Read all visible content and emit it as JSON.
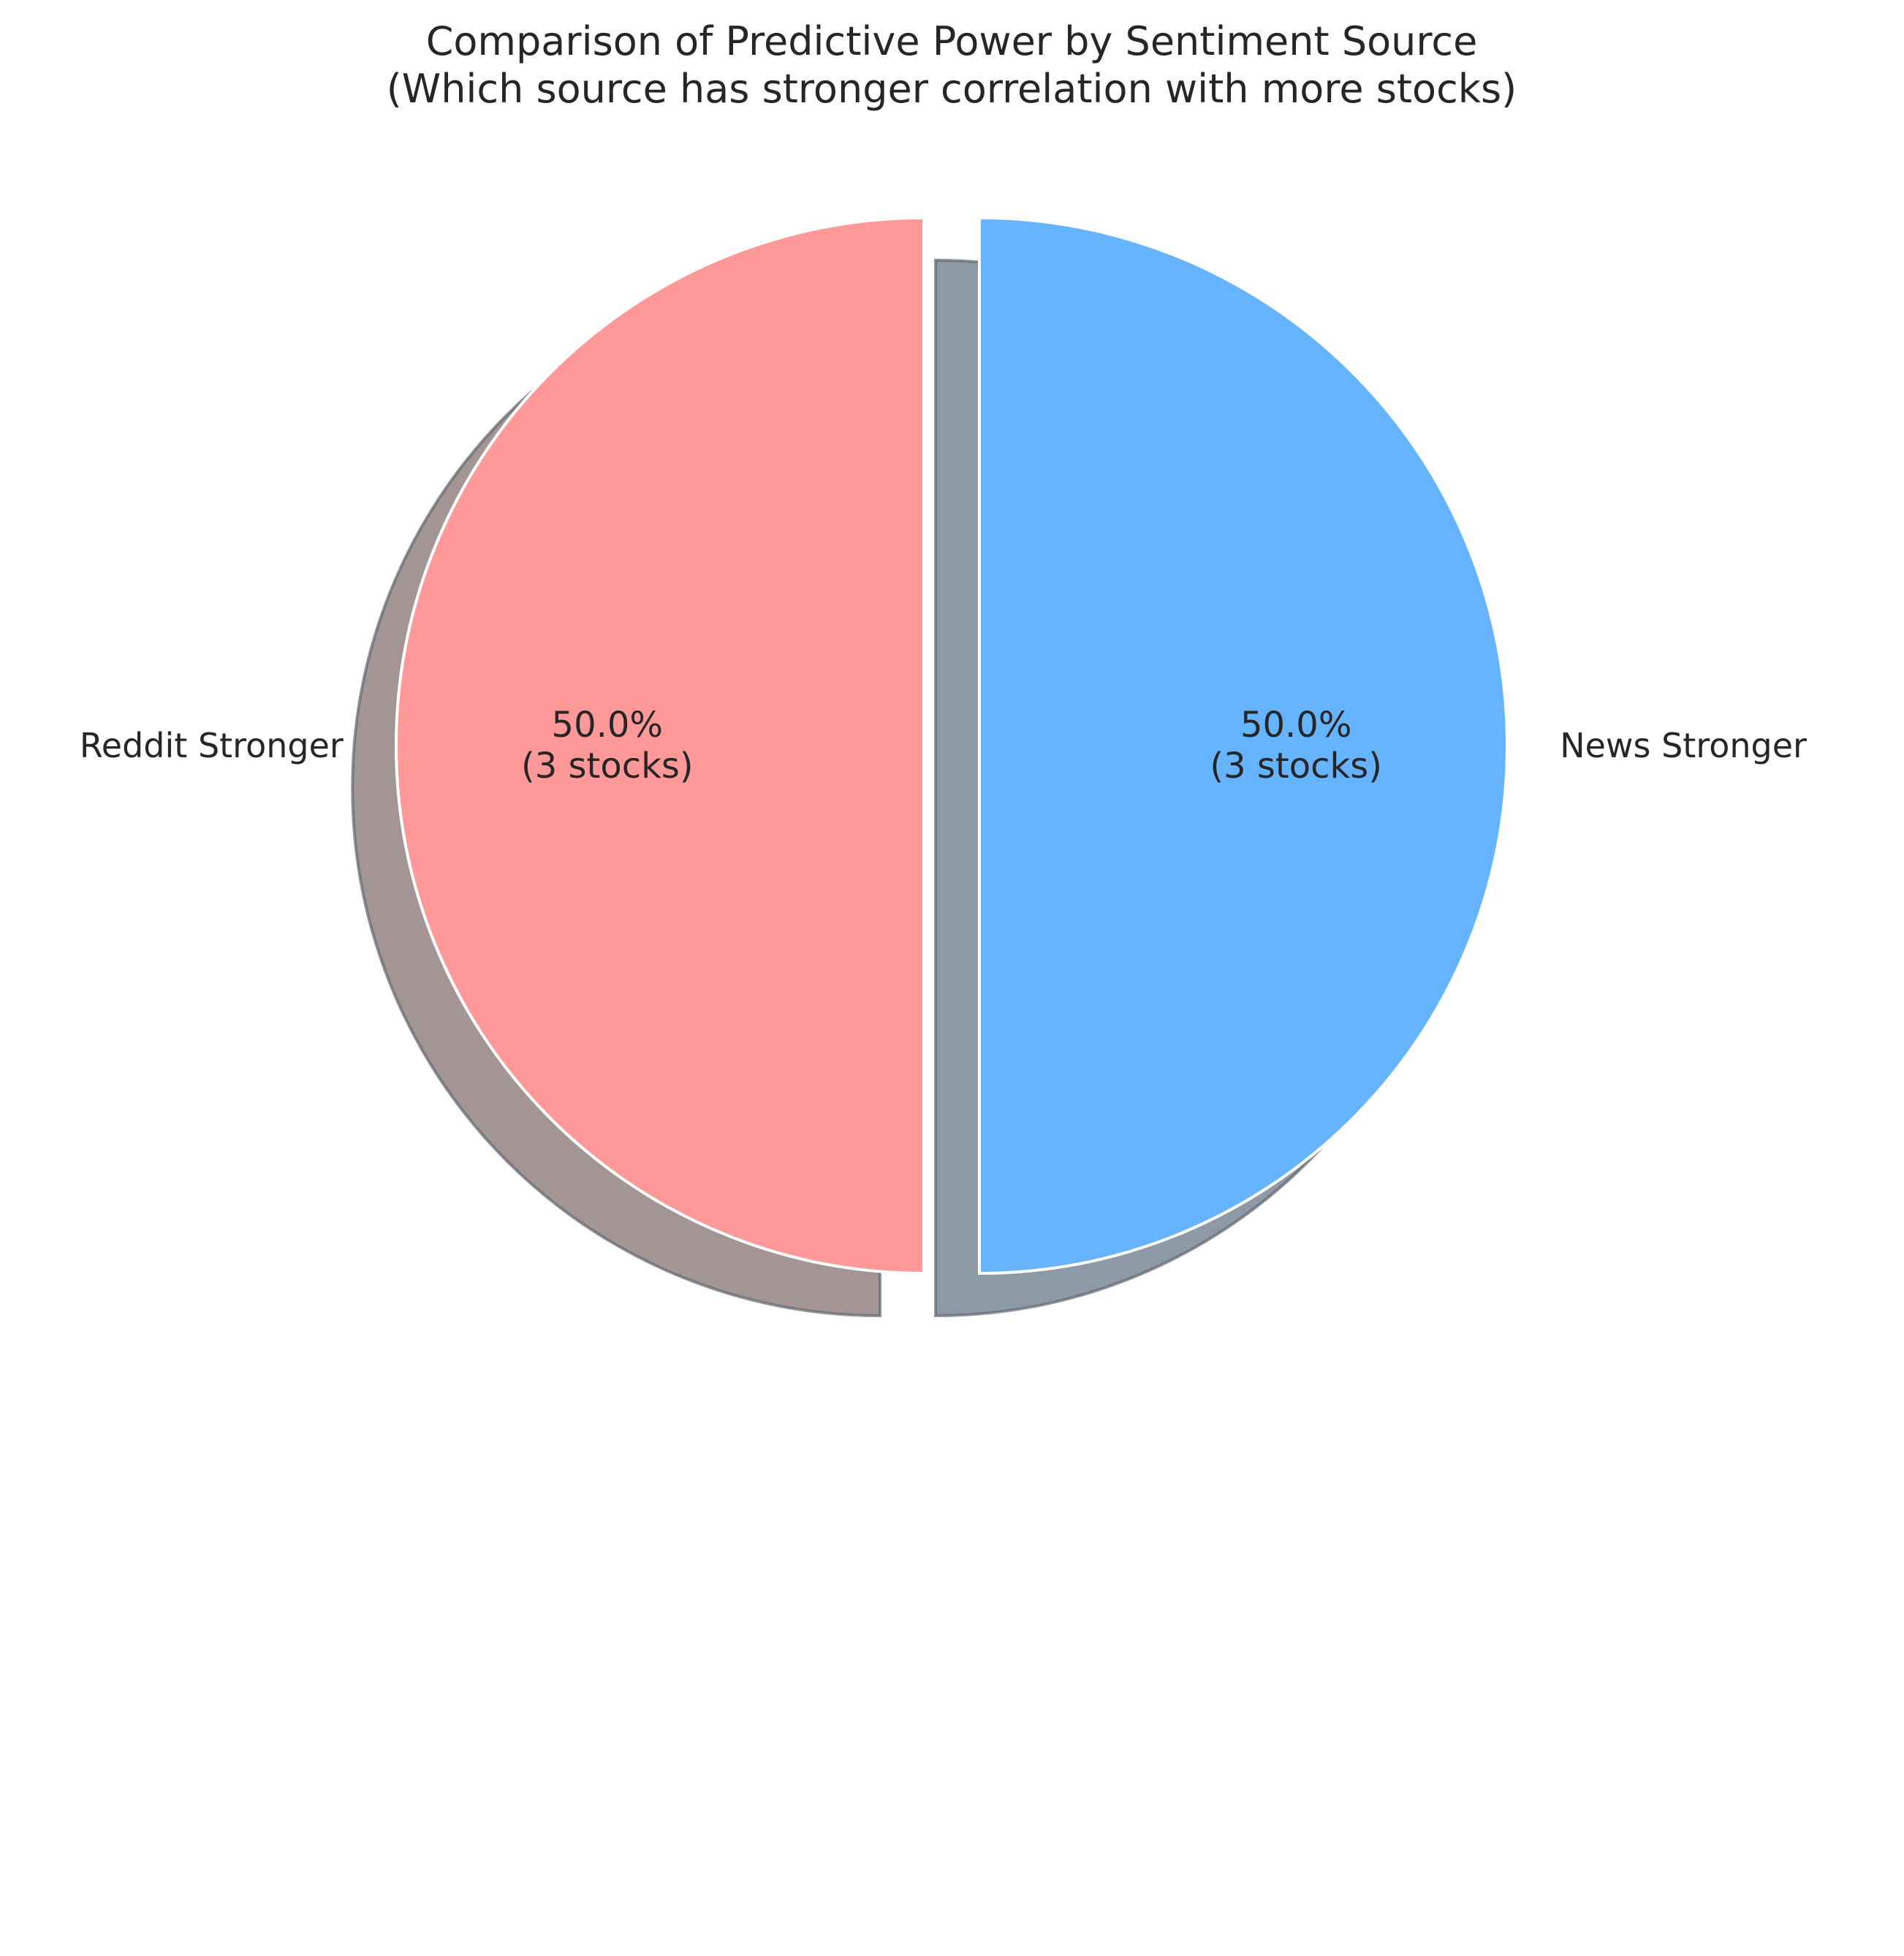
{
  "chart_data": {
    "type": "pie",
    "title": "Comparison of Predictive Power by Sentiment Source",
    "subtitle": "(Which source has stronger correlation with more stocks)",
    "slices": [
      {
        "label": "Reddit Stronger",
        "value": 3,
        "percent": 50.0,
        "pct_text": "50.0%",
        "count_text": "(3 stocks)",
        "color": "#ff9999",
        "shadow_color": "#a39594",
        "exploded": true
      },
      {
        "label": "News Stronger",
        "value": 3,
        "percent": 50.0,
        "pct_text": "50.0%",
        "count_text": "(3 stocks)",
        "color": "#66b3ff",
        "shadow_color": "#8e99a6",
        "exploded": true
      }
    ],
    "start_angle": 90,
    "shadow": true,
    "legend": "none"
  }
}
